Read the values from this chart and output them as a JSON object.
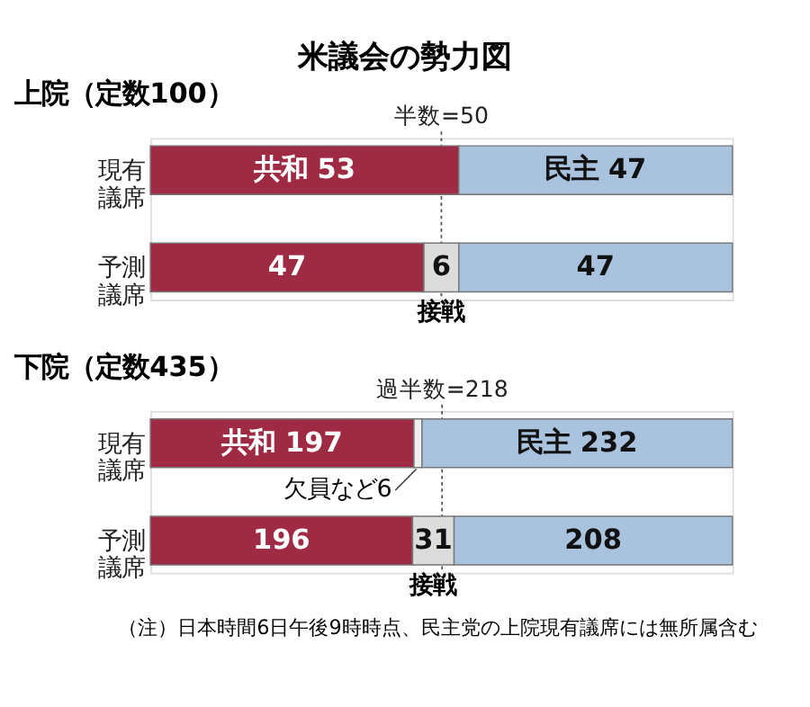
{
  "chart_data": [
    {
      "type": "bar",
      "orientation": "horizontal",
      "stacked": true,
      "title": "米議会の勢力図",
      "subtitle": "上院（定数100）",
      "categories": [
        "現有議席",
        "予測議席"
      ],
      "xlim": [
        0,
        100
      ],
      "tick_labels": "y",
      "legend": false,
      "series": [
        {
          "color": "#9e2a43",
          "values": [
            53,
            47
          ],
          "value_labels": [
            "共和 53",
            "47"
          ]
        },
        {
          "color": "#dcdcdc",
          "values": [
            null,
            6
          ],
          "value_labels": [
            null,
            "6"
          ]
        },
        {
          "color": "#a9c2dd",
          "values": [
            47,
            47
          ],
          "value_labels": [
            "民主 47",
            "47"
          ]
        }
      ],
      "ref_lines": [
        {
          "axis": "x",
          "value": 50,
          "label": "半数=50",
          "line_style": "dotted"
        }
      ],
      "annotations": [
        {
          "text": "接戦",
          "x": 50,
          "y": "予測議席"
        }
      ]
    },
    {
      "type": "bar",
      "orientation": "horizontal",
      "stacked": true,
      "subtitle": "下院（定数435）",
      "categories": [
        "現有議席",
        "予測議席"
      ],
      "xlim": [
        0,
        435
      ],
      "tick_labels": "y",
      "legend": false,
      "series": [
        {
          "color": "#9e2a43",
          "values": [
            197,
            196
          ],
          "value_labels": [
            "共和 197",
            "196"
          ]
        },
        {
          "colors": [
            "#efefef",
            "#dcdcdc"
          ],
          "values": [
            6,
            31
          ],
          "value_labels": [
            null,
            "31"
          ]
        },
        {
          "color": "#a9c2dd",
          "values": [
            232,
            208
          ],
          "value_labels": [
            "民主 232",
            "208"
          ]
        }
      ],
      "ref_lines": [
        {
          "axis": "x",
          "value": 218,
          "label": "過半数=218",
          "line_style": "dotted"
        }
      ],
      "annotations": [
        {
          "text": "欠員など6",
          "x": 200,
          "y": "現有議席"
        },
        {
          "text": "接戦",
          "x": 211.5,
          "y": "予測議席"
        },
        "（注）日本時間6日午後9時時点、民主党の上院現有議席には無所属含む"
      ]
    }
  ]
}
